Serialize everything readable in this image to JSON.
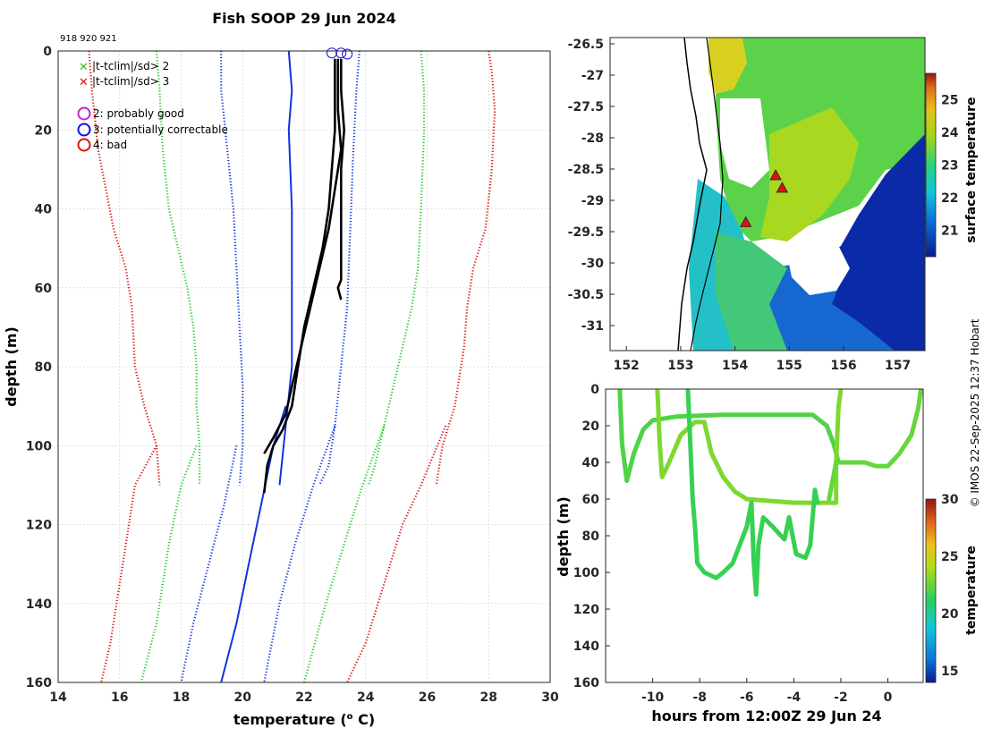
{
  "title": "Fish SOOP 29 Jun 2024",
  "profile_ids": "918 920 921",
  "legend": {
    "items": [
      {
        "symbol": "x",
        "color": "#22cc22",
        "label": "|t-tclim|/sd> 2"
      },
      {
        "symbol": "x",
        "color": "#dd1111",
        "label": "|t-tclim|/sd> 3"
      },
      {
        "symbol": "o",
        "color": "#cc22cc",
        "label": "2: probably good"
      },
      {
        "symbol": "o",
        "color": "#1111dd",
        "label": "3: potentially correctable"
      },
      {
        "symbol": "o",
        "color": "#dd1111",
        "label": "4: bad"
      }
    ]
  },
  "credit": "© IMOS 22-Sep-2025 12:37 Hobart",
  "chart_data": [
    {
      "name": "profile",
      "type": "line",
      "xlabel": "temperature (° C)",
      "ylabel": "depth (m)",
      "xlim": [
        14,
        30
      ],
      "ylim": [
        0,
        160
      ],
      "xticks": [
        14,
        16,
        18,
        20,
        22,
        24,
        26,
        28,
        30
      ],
      "yticks": [
        0,
        20,
        40,
        60,
        80,
        100,
        120,
        140,
        160
      ],
      "series": [
        {
          "name": "clim -3sd",
          "color": "#dd1111",
          "style": "dotted",
          "points": [
            [
              15.0,
              0
            ],
            [
              15.1,
              10
            ],
            [
              15.3,
              25
            ],
            [
              15.8,
              45
            ],
            [
              16.2,
              55
            ],
            [
              16.4,
              65
            ],
            [
              16.5,
              80
            ],
            [
              16.8,
              90
            ],
            [
              17.2,
              100
            ],
            [
              17.3,
              110
            ]
          ]
        },
        {
          "name": "clim -3sd deep",
          "color": "#dd1111",
          "style": "dotted",
          "points": [
            [
              17.2,
              100
            ],
            [
              16.5,
              110
            ],
            [
              16.3,
              120
            ],
            [
              16.0,
              135
            ],
            [
              15.7,
              150
            ],
            [
              15.4,
              160
            ]
          ]
        },
        {
          "name": "clim -2sd",
          "color": "#22cc22",
          "style": "dotted",
          "points": [
            [
              17.2,
              0
            ],
            [
              17.3,
              10
            ],
            [
              17.4,
              25
            ],
            [
              17.6,
              40
            ],
            [
              17.9,
              50
            ],
            [
              18.2,
              60
            ],
            [
              18.4,
              70
            ],
            [
              18.5,
              80
            ],
            [
              18.5,
              90
            ],
            [
              18.6,
              100
            ],
            [
              18.6,
              110
            ]
          ]
        },
        {
          "name": "clim -2sd deep",
          "color": "#22cc22",
          "style": "dotted",
          "points": [
            [
              18.5,
              100
            ],
            [
              18.0,
              110
            ],
            [
              17.6,
              125
            ],
            [
              17.2,
              145
            ],
            [
              16.7,
              160
            ]
          ]
        },
        {
          "name": "clim -1sd",
          "color": "#1133dd",
          "style": "dotted",
          "points": [
            [
              19.3,
              0
            ],
            [
              19.3,
              10
            ],
            [
              19.5,
              25
            ],
            [
              19.7,
              40
            ],
            [
              19.8,
              55
            ],
            [
              19.9,
              70
            ],
            [
              20.0,
              85
            ],
            [
              20.0,
              100
            ],
            [
              19.9,
              110
            ]
          ]
        },
        {
          "name": "clim -1sd deep",
          "color": "#1133dd",
          "style": "dotted",
          "points": [
            [
              19.8,
              100
            ],
            [
              19.4,
              115
            ],
            [
              18.9,
              130
            ],
            [
              18.4,
              145
            ],
            [
              18.0,
              160
            ]
          ]
        },
        {
          "name": "clim mean",
          "color": "#1133dd",
          "style": "solid",
          "points": [
            [
              21.5,
              0
            ],
            [
              21.6,
              10
            ],
            [
              21.5,
              20
            ],
            [
              21.6,
              40
            ],
            [
              21.6,
              60
            ],
            [
              21.6,
              80
            ],
            [
              21.4,
              95
            ],
            [
              21.2,
              110
            ]
          ]
        },
        {
          "name": "clim mean deep",
          "color": "#1133dd",
          "style": "solid",
          "points": [
            [
              21.4,
              90
            ],
            [
              21.0,
              100
            ],
            [
              20.6,
              115
            ],
            [
              20.2,
              130
            ],
            [
              19.8,
              145
            ],
            [
              19.3,
              160
            ]
          ]
        },
        {
          "name": "clim +1sd",
          "color": "#1133dd",
          "style": "dotted",
          "points": [
            [
              23.8,
              0
            ],
            [
              23.7,
              10
            ],
            [
              23.6,
              25
            ],
            [
              23.5,
              45
            ],
            [
              23.4,
              65
            ],
            [
              23.2,
              80
            ],
            [
              23.0,
              95
            ],
            [
              22.8,
              105
            ],
            [
              22.5,
              110
            ]
          ]
        },
        {
          "name": "clim +1sd deep",
          "color": "#1133dd",
          "style": "dotted",
          "points": [
            [
              23.0,
              95
            ],
            [
              22.3,
              110
            ],
            [
              21.7,
              125
            ],
            [
              21.2,
              140
            ],
            [
              20.7,
              160
            ]
          ]
        },
        {
          "name": "clim +2sd",
          "color": "#22cc22",
          "style": "dotted",
          "points": [
            [
              25.8,
              0
            ],
            [
              25.9,
              10
            ],
            [
              25.9,
              20
            ],
            [
              25.8,
              40
            ],
            [
              25.7,
              55
            ],
            [
              25.5,
              65
            ],
            [
              25.2,
              75
            ],
            [
              24.9,
              85
            ],
            [
              24.6,
              95
            ],
            [
              24.3,
              105
            ],
            [
              24.1,
              110
            ]
          ]
        },
        {
          "name": "clim +2sd deep",
          "color": "#22cc22",
          "style": "dotted",
          "points": [
            [
              24.6,
              95
            ],
            [
              23.9,
              110
            ],
            [
              23.3,
              125
            ],
            [
              22.7,
              140
            ],
            [
              22.0,
              160
            ]
          ]
        },
        {
          "name": "clim +3sd",
          "color": "#dd1111",
          "style": "dotted",
          "points": [
            [
              28.0,
              0
            ],
            [
              28.1,
              5
            ],
            [
              28.2,
              15
            ],
            [
              28.1,
              30
            ],
            [
              27.9,
              45
            ],
            [
              27.5,
              55
            ],
            [
              27.3,
              65
            ],
            [
              27.2,
              75
            ],
            [
              26.9,
              90
            ],
            [
              26.5,
              100
            ],
            [
              26.3,
              110
            ]
          ]
        },
        {
          "name": "clim +3sd deep",
          "color": "#dd1111",
          "style": "dotted",
          "points": [
            [
              26.6,
              95
            ],
            [
              25.8,
              110
            ],
            [
              25.2,
              120
            ],
            [
              24.6,
              135
            ],
            [
              24.0,
              150
            ],
            [
              23.4,
              160
            ]
          ]
        },
        {
          "name": "obs 918",
          "color": "#000000",
          "style": "solid",
          "points": [
            [
              23.0,
              2
            ],
            [
              23.0,
              10
            ],
            [
              23.0,
              20
            ],
            [
              22.9,
              30
            ],
            [
              22.8,
              40
            ],
            [
              22.6,
              50
            ],
            [
              22.3,
              60
            ],
            [
              22.0,
              70
            ],
            [
              21.8,
              80
            ],
            [
              21.6,
              90
            ],
            [
              21.3,
              96
            ],
            [
              21.0,
              100
            ],
            [
              20.8,
              105
            ],
            [
              20.7,
              112
            ]
          ]
        },
        {
          "name": "obs 920",
          "color": "#000000",
          "style": "solid",
          "points": [
            [
              23.1,
              2
            ],
            [
              23.1,
              15
            ],
            [
              23.2,
              25
            ],
            [
              23.0,
              35
            ],
            [
              22.8,
              45
            ],
            [
              22.5,
              55
            ],
            [
              22.2,
              65
            ],
            [
              21.9,
              75
            ],
            [
              21.6,
              85
            ],
            [
              21.4,
              92
            ],
            [
              21.0,
              98
            ],
            [
              20.7,
              102
            ]
          ]
        },
        {
          "name": "obs 921",
          "color": "#000000",
          "style": "solid",
          "points": [
            [
              23.2,
              2
            ],
            [
              23.2,
              10
            ],
            [
              23.3,
              20
            ],
            [
              23.2,
              30
            ],
            [
              23.2,
              40
            ],
            [
              23.2,
              50
            ],
            [
              23.2,
              58
            ],
            [
              23.1,
              60
            ],
            [
              23.2,
              63
            ]
          ]
        }
      ],
      "flags": [
        {
          "type": "o",
          "color": "#1111dd",
          "x": 22.9,
          "y": 0.5
        },
        {
          "type": "o",
          "color": "#1111dd",
          "x": 23.2,
          "y": 0.5
        },
        {
          "type": "o",
          "color": "#1111dd",
          "x": 23.4,
          "y": 0.8
        }
      ]
    },
    {
      "name": "map",
      "type": "heatmap",
      "xticks": [
        152,
        153,
        154,
        155,
        156,
        157
      ],
      "yticks": [
        -26.5,
        -27,
        -27.5,
        -28,
        -28.5,
        -29,
        -29.5,
        -30,
        -30.5,
        -31
      ],
      "xlim": [
        151.7,
        157.5
      ],
      "ylim": [
        -31.4,
        -26.4
      ],
      "colorbar": {
        "label": "surface temperature",
        "ticks": [
          21,
          22,
          23,
          24,
          25
        ],
        "range": [
          20.2,
          25.8
        ]
      },
      "markers": [
        {
          "lon": 154.75,
          "lat": -28.6
        },
        {
          "lon": 154.87,
          "lat": -28.8
        },
        {
          "lon": 154.2,
          "lat": -29.35
        }
      ]
    },
    {
      "name": "depth-time",
      "type": "scatter",
      "xlabel": "hours from 12:00Z 29 Jun 24",
      "ylabel": "depth (m)",
      "xlim": [
        -12,
        1.5
      ],
      "ylim": [
        0,
        160
      ],
      "xticks": [
        -10,
        -8,
        -6,
        -4,
        -2,
        0
      ],
      "yticks": [
        0,
        20,
        40,
        60,
        80,
        100,
        120,
        140,
        160
      ],
      "colorbar": {
        "label": "temperature",
        "ticks": [
          15,
          20,
          25,
          30
        ],
        "range": [
          14,
          30
        ]
      },
      "tracks": [
        {
          "temp": 22.0,
          "points": [
            [
              -11.4,
              0
            ],
            [
              -11.3,
              30
            ],
            [
              -11.1,
              50
            ],
            [
              -10.8,
              35
            ],
            [
              -10.4,
              22
            ],
            [
              -10.0,
              17
            ],
            [
              -9.0,
              15
            ],
            [
              -7.0,
              14
            ],
            [
              -5.0,
              14
            ],
            [
              -3.2,
              14
            ],
            [
              -2.6,
              20
            ],
            [
              -2.3,
              30
            ],
            [
              -2.1,
              40
            ]
          ]
        },
        {
          "temp": 23.0,
          "points": [
            [
              -9.8,
              0
            ],
            [
              -9.7,
              30
            ],
            [
              -9.6,
              48
            ],
            [
              -9.3,
              40
            ],
            [
              -8.8,
              25
            ],
            [
              -8.2,
              18
            ],
            [
              -7.8,
              18
            ],
            [
              -7.5,
              35
            ],
            [
              -7.0,
              48
            ],
            [
              -6.5,
              56
            ],
            [
              -6.0,
              60
            ],
            [
              -4.0,
              62
            ],
            [
              -2.2,
              62
            ],
            [
              -2.2,
              40
            ],
            [
              -2.1,
              10
            ],
            [
              -2.0,
              0
            ]
          ]
        },
        {
          "temp": 21.5,
          "points": [
            [
              -8.5,
              0
            ],
            [
              -8.4,
              30
            ],
            [
              -8.3,
              60
            ],
            [
              -8.2,
              75
            ],
            [
              -8.1,
              95
            ],
            [
              -7.8,
              100
            ],
            [
              -7.3,
              103
            ],
            [
              -7.0,
              100
            ],
            [
              -6.6,
              95
            ],
            [
              -6.3,
              85
            ],
            [
              -6.0,
              75
            ],
            [
              -5.8,
              62
            ],
            [
              -5.7,
              95
            ],
            [
              -5.6,
              112
            ],
            [
              -5.5,
              85
            ],
            [
              -5.3,
              70
            ],
            [
              -4.9,
              75
            ],
            [
              -4.4,
              82
            ],
            [
              -4.2,
              70
            ],
            [
              -3.9,
              90
            ],
            [
              -3.5,
              92
            ],
            [
              -3.3,
              85
            ],
            [
              -3.1,
              55
            ],
            [
              -3.0,
              62
            ]
          ]
        },
        {
          "temp": 22.5,
          "points": [
            [
              -2.5,
              60
            ],
            [
              -2.2,
              40
            ],
            [
              -1.8,
              40
            ],
            [
              -1.0,
              40
            ],
            [
              -0.5,
              42
            ],
            [
              0.0,
              42
            ],
            [
              0.5,
              35
            ],
            [
              1.0,
              25
            ],
            [
              1.3,
              10
            ],
            [
              1.4,
              0
            ]
          ]
        }
      ]
    }
  ]
}
